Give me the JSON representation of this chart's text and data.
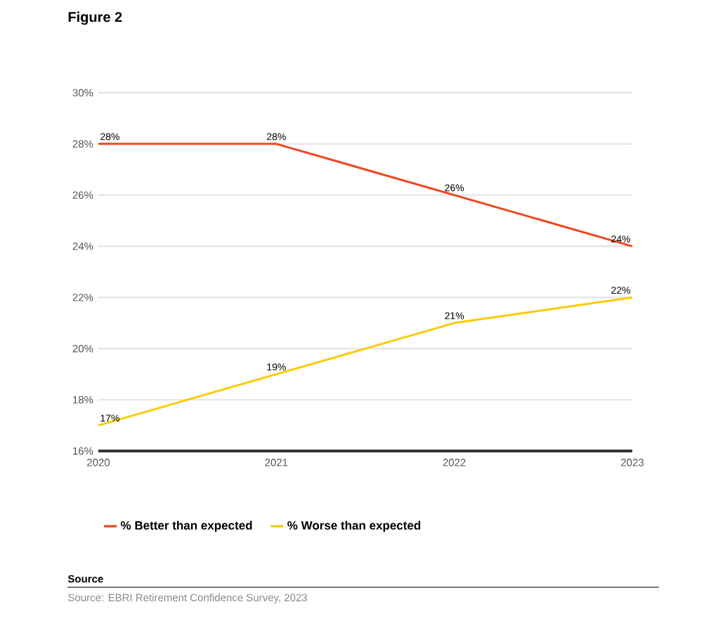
{
  "chart_data": {
    "type": "line",
    "title": "Figure 2",
    "categories": [
      "2020",
      "2021",
      "2022",
      "2023"
    ],
    "series": [
      {
        "name": "% Better than expected",
        "color": "#f0461e",
        "values": [
          28,
          28,
          26,
          24
        ],
        "value_labels": [
          "28%",
          "28%",
          "26%",
          "24%"
        ]
      },
      {
        "name": "% Worse than expected",
        "color": "#facc00",
        "values": [
          17,
          19,
          21,
          22
        ],
        "value_labels": [
          "17%",
          "19%",
          "21%",
          "22%"
        ]
      }
    ],
    "ylim": [
      16,
      30
    ],
    "yticks": [
      {
        "value": 16,
        "label": "16%"
      },
      {
        "value": 18,
        "label": "18%"
      },
      {
        "value": 20,
        "label": "20%"
      },
      {
        "value": 22,
        "label": "22%"
      },
      {
        "value": 24,
        "label": "24%"
      },
      {
        "value": 26,
        "label": "26%"
      },
      {
        "value": 28,
        "label": "28%"
      },
      {
        "value": 30,
        "label": "30%"
      }
    ],
    "grid": "y",
    "legend": "bottom",
    "annotations": [
      "Source",
      "Source: EBRI Retirement Confidence Survey, 2023"
    ]
  }
}
